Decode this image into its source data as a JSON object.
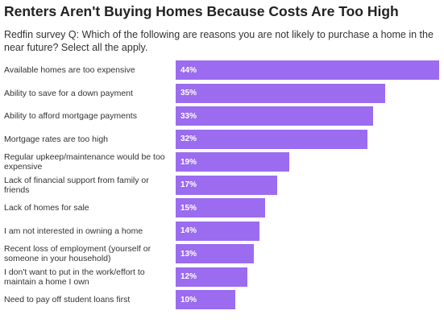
{
  "chart_data": {
    "type": "bar",
    "orientation": "horizontal",
    "title": "Renters Aren't Buying Homes Because Costs Are Too High",
    "subtitle": "Redfin survey Q: Which of the following are reasons you are not likely to purchase a home in the near future? Select all the apply.",
    "categories": [
      "Available homes are too expensive",
      "Ability to save for a down payment",
      "Ability to afford mortgage payments",
      "Mortgage rates are too high",
      "Regular upkeep/maintenance would be too expensive",
      "Lack of financial support from family or friends",
      "Lack of homes for sale",
      "I am not interested in owning a home",
      "Recent loss of employment (yourself or someone in your household)",
      "I don't want to put in the work/effort to maintain a home I own",
      "Need to pay off student loans first"
    ],
    "values": [
      44,
      35,
      33,
      32,
      19,
      17,
      15,
      14,
      13,
      12,
      10
    ],
    "value_labels": [
      "44%",
      "35%",
      "33%",
      "32%",
      "19%",
      "17%",
      "15%",
      "14%",
      "13%",
      "12%",
      "10%"
    ],
    "color": "#9b6cf0"
  }
}
